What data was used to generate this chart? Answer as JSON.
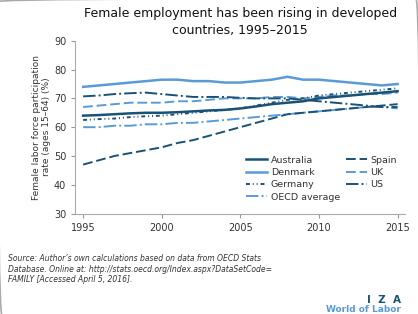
{
  "title": "Female employment has been rising in developed\ncountries, 1995–2015",
  "ylabel": "Female labor force participation\nrate (ages 15–64) (%)",
  "source_text": "Source: Author’s own calculations based on data from OECD Stats\nDatabase. Online at: http://stats.oecd.org/Index.aspx?DataSetCode=\nFAMILY [Accessed April 5, 2016].",
  "iza_line1": "I  Z  A",
  "iza_line2": "World of Labor",
  "xlim": [
    1994.5,
    2015.5
  ],
  "ylim": [
    30,
    90
  ],
  "yticks": [
    30,
    40,
    50,
    60,
    70,
    80,
    90
  ],
  "xticks": [
    1995,
    2000,
    2005,
    2010,
    2015
  ],
  "color_dark": "#1a5276",
  "color_light": "#5b9bd5",
  "years": [
    1995,
    1996,
    1997,
    1998,
    1999,
    2000,
    2001,
    2002,
    2003,
    2004,
    2005,
    2006,
    2007,
    2008,
    2009,
    2010,
    2011,
    2012,
    2013,
    2014,
    2015
  ],
  "australia": [
    64.0,
    64.2,
    64.5,
    64.8,
    65.0,
    65.0,
    65.2,
    65.5,
    65.8,
    66.0,
    66.5,
    67.2,
    68.0,
    68.5,
    69.0,
    70.0,
    70.5,
    71.0,
    71.5,
    72.0,
    72.5
  ],
  "germany": [
    62.5,
    62.8,
    63.0,
    63.5,
    63.8,
    64.0,
    64.5,
    65.0,
    65.5,
    66.0,
    66.5,
    67.5,
    68.5,
    69.5,
    70.0,
    71.0,
    71.5,
    72.0,
    72.5,
    73.0,
    73.5
  ],
  "spain": [
    47.0,
    48.5,
    50.0,
    51.0,
    52.0,
    53.0,
    54.5,
    55.5,
    57.0,
    58.5,
    60.0,
    61.5,
    63.0,
    64.5,
    65.0,
    65.5,
    66.0,
    66.5,
    67.0,
    67.5,
    68.0
  ],
  "us": [
    70.7,
    71.0,
    71.5,
    71.8,
    72.0,
    71.5,
    71.0,
    70.5,
    70.5,
    70.5,
    70.2,
    70.0,
    70.0,
    70.0,
    69.5,
    69.0,
    68.5,
    68.0,
    67.5,
    67.0,
    67.0
  ],
  "denmark": [
    74.0,
    74.5,
    75.0,
    75.5,
    76.0,
    76.5,
    76.5,
    76.0,
    76.0,
    75.5,
    75.5,
    76.0,
    76.5,
    77.5,
    76.5,
    76.5,
    76.0,
    75.5,
    75.0,
    74.5,
    75.0
  ],
  "oecd": [
    60.0,
    60.0,
    60.5,
    60.5,
    61.0,
    61.0,
    61.5,
    61.5,
    62.0,
    62.5,
    63.0,
    63.5,
    64.0,
    64.5,
    65.0,
    65.5,
    66.0,
    66.5,
    67.0,
    67.0,
    66.5
  ],
  "uk": [
    67.0,
    67.5,
    68.0,
    68.5,
    68.5,
    68.5,
    69.0,
    69.0,
    69.5,
    70.0,
    70.0,
    70.0,
    70.5,
    70.5,
    70.0,
    70.5,
    71.0,
    71.0,
    71.5,
    71.5,
    72.0
  ]
}
